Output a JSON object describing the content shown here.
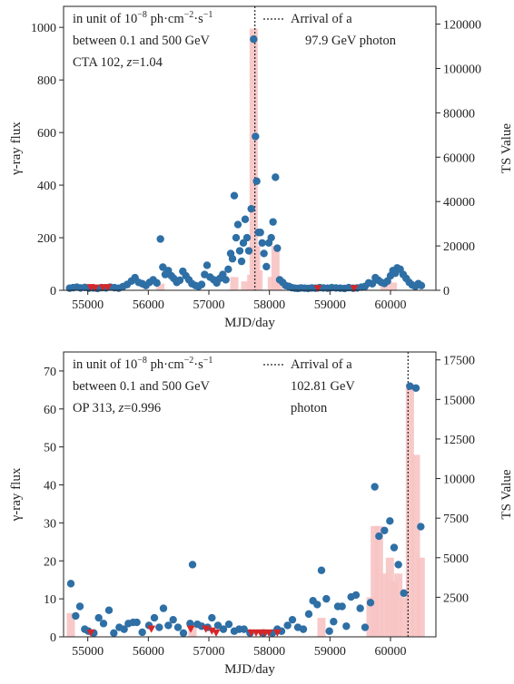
{
  "chart_data": [
    {
      "type": "bar",
      "xlabel": "MJD/day",
      "ylabel": "γ-ray flux",
      "y2label": "TS Value",
      "xlim": [
        54600,
        60750
      ],
      "ylim": [
        0,
        1080
      ],
      "y2lim": [
        0,
        128000
      ],
      "xticks": [
        "55000",
        "56000",
        "57000",
        "58000",
        "59000",
        "60000"
      ],
      "yticks": [
        "0",
        "200",
        "400",
        "600",
        "800",
        "1000"
      ],
      "y2ticks": [
        "0",
        "20000",
        "40000",
        "60000",
        "80000",
        "100000",
        "120000"
      ],
      "annotation_lines": [
        "in unit of 10",
        "−8",
        " ph·cm",
        "−2",
        "·s",
        "−1",
        "between 0.1 and 500 GeV",
        "CTA 102, ",
        "z",
        "=1.04"
      ],
      "legend": [
        "Arrival of a",
        "97.9 GeV photon"
      ],
      "arrival_mjd": 57760,
      "flux_points": [
        [
          54700,
          8
        ],
        [
          54760,
          10
        ],
        [
          54820,
          12
        ],
        [
          54880,
          9
        ],
        [
          54950,
          11
        ],
        [
          55020,
          8
        ],
        [
          55090,
          9
        ],
        [
          55160,
          7
        ],
        [
          55230,
          10
        ],
        [
          55300,
          9
        ],
        [
          55370,
          12
        ],
        [
          55440,
          10
        ],
        [
          55510,
          8
        ],
        [
          55580,
          14
        ],
        [
          55650,
          22
        ],
        [
          55720,
          35
        ],
        [
          55780,
          48
        ],
        [
          55840,
          30
        ],
        [
          55900,
          25
        ],
        [
          55960,
          18
        ],
        [
          56020,
          30
        ],
        [
          56080,
          40
        ],
        [
          56140,
          28
        ],
        [
          56200,
          195
        ],
        [
          56240,
          88
        ],
        [
          56280,
          60
        ],
        [
          56330,
          75
        ],
        [
          56380,
          55
        ],
        [
          56420,
          45
        ],
        [
          56470,
          30
        ],
        [
          56520,
          38
        ],
        [
          56570,
          72
        ],
        [
          56620,
          55
        ],
        [
          56670,
          40
        ],
        [
          56720,
          25
        ],
        [
          56780,
          18
        ],
        [
          56830,
          15
        ],
        [
          56880,
          22
        ],
        [
          56930,
          60
        ],
        [
          56970,
          95
        ],
        [
          57020,
          50
        ],
        [
          57080,
          40
        ],
        [
          57130,
          28
        ],
        [
          57180,
          45
        ],
        [
          57230,
          60
        ],
        [
          57280,
          40
        ],
        [
          57320,
          80
        ],
        [
          57360,
          140
        ],
        [
          57390,
          120
        ],
        [
          57420,
          360
        ],
        [
          57450,
          200
        ],
        [
          57480,
          250
        ],
        [
          57510,
          150
        ],
        [
          57540,
          110
        ],
        [
          57570,
          180
        ],
        [
          57600,
          270
        ],
        [
          57630,
          200
        ],
        [
          57660,
          150
        ],
        [
          57700,
          310
        ],
        [
          57740,
          955
        ],
        [
          57770,
          585
        ],
        [
          57790,
          415
        ],
        [
          57820,
          220
        ],
        [
          57850,
          220
        ],
        [
          57880,
          180
        ],
        [
          57910,
          140
        ],
        [
          57950,
          90
        ],
        [
          57990,
          180
        ],
        [
          58030,
          200
        ],
        [
          58060,
          260
        ],
        [
          58100,
          430
        ],
        [
          58130,
          160
        ],
        [
          58170,
          40
        ],
        [
          58220,
          30
        ],
        [
          58270,
          18
        ],
        [
          58320,
          15
        ],
        [
          58370,
          10
        ],
        [
          58420,
          8
        ],
        [
          58470,
          7
        ],
        [
          58520,
          9
        ],
        [
          58580,
          8
        ],
        [
          58640,
          7
        ],
        [
          58700,
          9
        ],
        [
          58760,
          8
        ],
        [
          58830,
          10
        ],
        [
          58890,
          9
        ],
        [
          58960,
          8
        ],
        [
          59030,
          10
        ],
        [
          59100,
          9
        ],
        [
          59170,
          8
        ],
        [
          59240,
          7
        ],
        [
          59310,
          10
        ],
        [
          59380,
          8
        ],
        [
          59450,
          9
        ],
        [
          59520,
          12
        ],
        [
          59580,
          15
        ],
        [
          59640,
          28
        ],
        [
          59700,
          25
        ],
        [
          59750,
          48
        ],
        [
          59800,
          38
        ],
        [
          59850,
          30
        ],
        [
          59900,
          26
        ],
        [
          59950,
          35
        ],
        [
          60000,
          55
        ],
        [
          60040,
          75
        ],
        [
          60080,
          65
        ],
        [
          60110,
          85
        ],
        [
          60160,
          80
        ],
        [
          60210,
          60
        ],
        [
          60260,
          45
        ],
        [
          60310,
          30
        ],
        [
          60360,
          20
        ],
        [
          60410,
          15
        ],
        [
          60460,
          25
        ],
        [
          60510,
          18
        ]
      ],
      "upper_limits": [
        [
          55050,
          10
        ],
        [
          55120,
          8
        ],
        [
          55250,
          9
        ],
        [
          55330,
          10
        ],
        [
          58800,
          6
        ],
        [
          59400,
          6
        ]
      ],
      "ts_bars": [
        [
          56200,
          3000
        ],
        [
          57420,
          6000
        ],
        [
          57600,
          4000
        ],
        [
          57700,
          7000
        ],
        [
          57740,
          118000
        ],
        [
          57780,
          20000
        ],
        [
          57820,
          9000
        ],
        [
          58040,
          6000
        ],
        [
          58100,
          20000
        ],
        [
          58150,
          6000
        ],
        [
          59900,
          2500
        ],
        [
          60040,
          3500
        ]
      ]
    },
    {
      "type": "bar",
      "xlabel": "MJD/day",
      "ylabel": "γ-ray flux",
      "y2label": "TS Value",
      "xlim": [
        54600,
        60750
      ],
      "ylim": [
        0,
        75
      ],
      "y2lim": [
        0,
        18000
      ],
      "xticks": [
        "55000",
        "56000",
        "57000",
        "58000",
        "59000",
        "60000"
      ],
      "yticks": [
        "0",
        "10",
        "20",
        "30",
        "40",
        "50",
        "60",
        "70"
      ],
      "y2ticks": [
        "2500",
        "5000",
        "7500",
        "10000",
        "12500",
        "15000",
        "17500"
      ],
      "annotation_lines": [
        "in unit of 10",
        "−8",
        " ph·cm",
        "−2",
        "·s",
        "−1",
        "between 0.1 and 500 GeV",
        "OP 313, ",
        "z",
        "=0.996"
      ],
      "legend": [
        "Arrival of a",
        "102.81 GeV",
        "photon"
      ],
      "arrival_mjd": 60290,
      "flux_points": [
        [
          54720,
          14
        ],
        [
          54800,
          5.5
        ],
        [
          54870,
          8
        ],
        [
          54950,
          2
        ],
        [
          55010,
          1.5
        ],
        [
          55100,
          1
        ],
        [
          55180,
          5
        ],
        [
          55260,
          3.5
        ],
        [
          55350,
          7
        ],
        [
          55430,
          1
        ],
        [
          55520,
          2.5
        ],
        [
          55600,
          2
        ],
        [
          55670,
          3.5
        ],
        [
          55750,
          3.8
        ],
        [
          55810,
          3.8
        ],
        [
          55900,
          1.2
        ],
        [
          56010,
          3
        ],
        [
          56100,
          5
        ],
        [
          56180,
          2.5
        ],
        [
          56250,
          7.5
        ],
        [
          56330,
          3
        ],
        [
          56410,
          4.5
        ],
        [
          56490,
          2.5
        ],
        [
          56580,
          1
        ],
        [
          56690,
          3.5
        ],
        [
          56730,
          19
        ],
        [
          56810,
          3.3
        ],
        [
          56880,
          2.8
        ],
        [
          56980,
          2.5
        ],
        [
          57050,
          5
        ],
        [
          57150,
          3
        ],
        [
          57240,
          2
        ],
        [
          57330,
          3.3
        ],
        [
          57420,
          1.5
        ],
        [
          57500,
          2
        ],
        [
          57580,
          2
        ],
        [
          57680,
          1
        ],
        [
          57900,
          1
        ],
        [
          58050,
          1
        ],
        [
          58130,
          2
        ],
        [
          58200,
          1.5
        ],
        [
          58300,
          3
        ],
        [
          58380,
          4.5
        ],
        [
          58470,
          2.5
        ],
        [
          58560,
          2
        ],
        [
          58650,
          6
        ],
        [
          58720,
          9.5
        ],
        [
          58790,
          8.5
        ],
        [
          58860,
          17.5
        ],
        [
          58940,
          10
        ],
        [
          58990,
          1.5
        ],
        [
          59060,
          4
        ],
        [
          59130,
          8
        ],
        [
          59200,
          8
        ],
        [
          59270,
          2.8
        ],
        [
          59350,
          10.5
        ],
        [
          59430,
          11
        ],
        [
          59500,
          7.5
        ],
        [
          59580,
          2.5
        ],
        [
          59670,
          9
        ],
        [
          59740,
          39.5
        ],
        [
          59810,
          26.5
        ],
        [
          59900,
          28
        ],
        [
          59990,
          30.5
        ],
        [
          60060,
          23.5
        ],
        [
          60130,
          19
        ],
        [
          60220,
          11.5
        ],
        [
          60320,
          66
        ],
        [
          60420,
          65.5
        ],
        [
          60500,
          29
        ]
      ],
      "upper_limits": [
        [
          55050,
          1
        ],
        [
          56050,
          2
        ],
        [
          56700,
          2
        ],
        [
          56950,
          2
        ],
        [
          57050,
          1.5
        ],
        [
          57120,
          1
        ],
        [
          57700,
          1
        ],
        [
          57780,
          1
        ],
        [
          57850,
          1
        ],
        [
          57920,
          1
        ],
        [
          57990,
          1
        ],
        [
          58130,
          1
        ]
      ],
      "ts_bars": [
        [
          54720,
          1500
        ],
        [
          56730,
          800
        ],
        [
          58860,
          1200
        ],
        [
          59670,
          2500
        ],
        [
          59740,
          7000
        ],
        [
          59810,
          7000
        ],
        [
          59900,
          4000
        ],
        [
          59990,
          5000
        ],
        [
          60060,
          3500
        ],
        [
          60130,
          4000
        ],
        [
          60220,
          2500
        ],
        [
          60320,
          16000
        ],
        [
          60420,
          11500
        ],
        [
          60500,
          5000
        ]
      ]
    }
  ]
}
